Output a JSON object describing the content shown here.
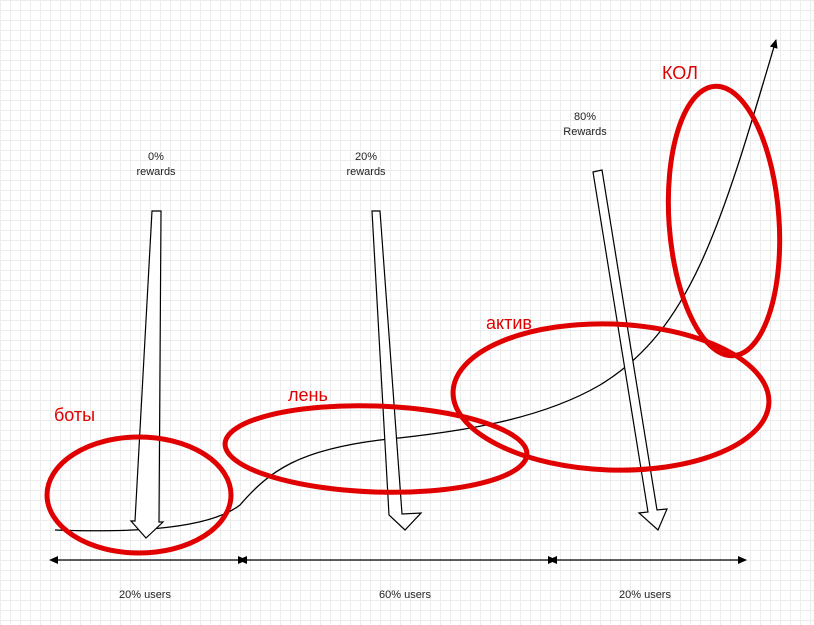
{
  "groups": {
    "bots": "боты",
    "lazy": "лень",
    "active": "актив",
    "kol": "КОЛ"
  },
  "rewards": {
    "r0": {
      "pct": "0%",
      "text": "rewards"
    },
    "r20": {
      "pct": "20%",
      "text": "rewards"
    },
    "r80": {
      "pct": "80%",
      "text": "Rewards"
    }
  },
  "users": {
    "u1": "20% users",
    "u2": "60% users",
    "u3": "20% users"
  },
  "colors": {
    "highlight": "#e00000",
    "line": "#000000",
    "text": "#222222"
  }
}
